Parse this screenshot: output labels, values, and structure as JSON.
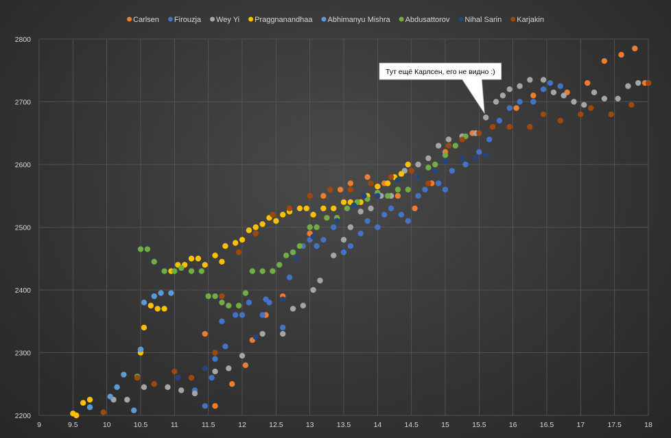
{
  "chart_data": {
    "type": "scatter",
    "xlim": [
      9,
      18
    ],
    "ylim": [
      2200,
      2800
    ],
    "x_ticks": [
      9,
      9.5,
      10,
      10.5,
      11,
      11.5,
      12,
      12.5,
      13,
      13.5,
      14,
      14.5,
      15,
      15.5,
      16,
      16.5,
      17,
      17.5,
      18
    ],
    "y_ticks": [
      2200,
      2300,
      2400,
      2500,
      2600,
      2700,
      2800
    ],
    "grid": true,
    "legend_position": "top",
    "annotation": {
      "text": "Тут ещё Карлсен, его не видно :)",
      "x": 15.6,
      "y": 2675
    },
    "series": [
      {
        "name": "Carlsen",
        "color": "#ed7d31",
        "points": [
          [
            10.5,
            2305
          ],
          [
            11.45,
            2330
          ],
          [
            11.6,
            2215
          ],
          [
            11.85,
            2250
          ],
          [
            12.05,
            2280
          ],
          [
            12.15,
            2320
          ],
          [
            12.35,
            2360
          ],
          [
            12.6,
            2390
          ],
          [
            12.8,
            2450
          ],
          [
            13.0,
            2490
          ],
          [
            13.2,
            2550
          ],
          [
            13.45,
            2560
          ],
          [
            13.6,
            2570
          ],
          [
            13.85,
            2580
          ],
          [
            14.1,
            2570
          ],
          [
            14.3,
            2550
          ],
          [
            14.55,
            2530
          ],
          [
            14.8,
            2570
          ],
          [
            15.0,
            2620
          ],
          [
            15.4,
            2650
          ],
          [
            16.05,
            2690
          ],
          [
            16.3,
            2710
          ],
          [
            16.8,
            2715
          ],
          [
            17.1,
            2730
          ],
          [
            17.35,
            2765
          ],
          [
            17.6,
            2775
          ],
          [
            17.8,
            2785
          ],
          [
            17.95,
            2730
          ]
        ]
      },
      {
        "name": "Firouzja",
        "color": "#4472c4",
        "points": [
          [
            11.3,
            2240
          ],
          [
            11.45,
            2215
          ],
          [
            11.55,
            2260
          ],
          [
            11.6,
            2290
          ],
          [
            11.7,
            2350
          ],
          [
            11.75,
            2310
          ],
          [
            11.9,
            2360
          ],
          [
            12.0,
            2360
          ],
          [
            12.1,
            2380
          ],
          [
            12.3,
            2360
          ],
          [
            12.35,
            2385
          ],
          [
            12.4,
            2380
          ],
          [
            12.6,
            2340
          ],
          [
            12.7,
            2420
          ],
          [
            12.75,
            2460
          ],
          [
            12.9,
            2470
          ],
          [
            13.0,
            2480
          ],
          [
            13.1,
            2470
          ],
          [
            13.2,
            2480
          ],
          [
            13.35,
            2500
          ],
          [
            13.5,
            2460
          ],
          [
            13.6,
            2470
          ],
          [
            13.75,
            2490
          ],
          [
            13.85,
            2510
          ],
          [
            14.0,
            2500
          ],
          [
            14.1,
            2520
          ],
          [
            14.2,
            2530
          ],
          [
            14.35,
            2520
          ],
          [
            14.45,
            2510
          ],
          [
            14.6,
            2550
          ],
          [
            14.7,
            2560
          ],
          [
            14.9,
            2570
          ],
          [
            15.0,
            2560
          ],
          [
            15.1,
            2590
          ],
          [
            15.3,
            2600
          ],
          [
            15.5,
            2620
          ],
          [
            15.65,
            2640
          ],
          [
            15.8,
            2670
          ],
          [
            15.95,
            2690
          ],
          [
            16.1,
            2700
          ],
          [
            16.3,
            2700
          ],
          [
            16.45,
            2720
          ],
          [
            16.55,
            2730
          ],
          [
            16.7,
            2725
          ]
        ]
      },
      {
        "name": "Wey Yi",
        "color": "#a5a5a5",
        "points": [
          [
            10.1,
            2225
          ],
          [
            10.3,
            2225
          ],
          [
            10.55,
            2245
          ],
          [
            10.9,
            2245
          ],
          [
            11.1,
            2240
          ],
          [
            11.3,
            2235
          ],
          [
            11.6,
            2270
          ],
          [
            11.8,
            2275
          ],
          [
            12.0,
            2295
          ],
          [
            12.3,
            2330
          ],
          [
            12.6,
            2330
          ],
          [
            12.75,
            2370
          ],
          [
            12.9,
            2375
          ],
          [
            13.05,
            2400
          ],
          [
            13.15,
            2415
          ],
          [
            13.35,
            2455
          ],
          [
            13.5,
            2480
          ],
          [
            13.6,
            2500
          ],
          [
            13.75,
            2525
          ],
          [
            13.9,
            2530
          ],
          [
            14.05,
            2550
          ],
          [
            14.2,
            2550
          ],
          [
            14.4,
            2590
          ],
          [
            14.6,
            2600
          ],
          [
            14.75,
            2610
          ],
          [
            14.9,
            2630
          ],
          [
            15.05,
            2640
          ],
          [
            15.25,
            2645
          ],
          [
            15.45,
            2650
          ],
          [
            15.6,
            2675
          ],
          [
            15.75,
            2700
          ],
          [
            15.85,
            2710
          ],
          [
            15.95,
            2720
          ],
          [
            16.1,
            2725
          ],
          [
            16.25,
            2735
          ],
          [
            16.45,
            2735
          ],
          [
            16.6,
            2715
          ],
          [
            16.75,
            2710
          ],
          [
            16.9,
            2700
          ],
          [
            17.05,
            2695
          ],
          [
            17.2,
            2715
          ],
          [
            17.35,
            2705
          ],
          [
            17.55,
            2705
          ],
          [
            17.7,
            2725
          ],
          [
            17.85,
            2730
          ],
          [
            18.0,
            2730
          ]
        ]
      },
      {
        "name": "Praggnanandhaa",
        "color": "#ffc000",
        "points": [
          [
            9.5,
            2203
          ],
          [
            9.55,
            2200
          ],
          [
            9.65,
            2220
          ],
          [
            9.75,
            2225
          ],
          [
            10.5,
            2300
          ],
          [
            10.55,
            2340
          ],
          [
            10.65,
            2375
          ],
          [
            10.75,
            2370
          ],
          [
            10.85,
            2370
          ],
          [
            10.95,
            2430
          ],
          [
            11.05,
            2440
          ],
          [
            11.15,
            2440
          ],
          [
            11.25,
            2450
          ],
          [
            11.35,
            2450
          ],
          [
            11.45,
            2440
          ],
          [
            11.6,
            2455
          ],
          [
            11.7,
            2445
          ],
          [
            11.75,
            2470
          ],
          [
            11.9,
            2475
          ],
          [
            12.0,
            2480
          ],
          [
            12.1,
            2495
          ],
          [
            12.2,
            2500
          ],
          [
            12.3,
            2505
          ],
          [
            12.4,
            2515
          ],
          [
            12.5,
            2510
          ],
          [
            12.6,
            2520
          ],
          [
            12.7,
            2525
          ],
          [
            12.85,
            2530
          ],
          [
            12.95,
            2530
          ],
          [
            13.05,
            2520
          ],
          [
            13.2,
            2530
          ],
          [
            13.35,
            2530
          ],
          [
            13.5,
            2540
          ],
          [
            13.6,
            2540
          ],
          [
            13.75,
            2540
          ],
          [
            13.85,
            2550
          ],
          [
            14.0,
            2565
          ],
          [
            14.15,
            2570
          ],
          [
            14.25,
            2580
          ],
          [
            14.35,
            2585
          ],
          [
            14.45,
            2600
          ]
        ]
      },
      {
        "name": "Abhimanyu Mishra",
        "color": "#5b9bd5",
        "points": [
          [
            9.75,
            2213
          ],
          [
            10.05,
            2230
          ],
          [
            10.15,
            2245
          ],
          [
            10.25,
            2265
          ],
          [
            10.4,
            2208
          ],
          [
            10.5,
            2305
          ],
          [
            10.55,
            2380
          ],
          [
            10.7,
            2390
          ],
          [
            10.8,
            2395
          ],
          [
            10.95,
            2395
          ]
        ]
      },
      {
        "name": "Abdusattorov",
        "color": "#70ad47",
        "points": [
          [
            10.45,
            2262
          ],
          [
            10.5,
            2465
          ],
          [
            10.6,
            2465
          ],
          [
            10.7,
            2445
          ],
          [
            10.85,
            2430
          ],
          [
            11.0,
            2430
          ],
          [
            11.1,
            2435
          ],
          [
            11.25,
            2430
          ],
          [
            11.4,
            2430
          ],
          [
            11.5,
            2390
          ],
          [
            11.6,
            2390
          ],
          [
            11.7,
            2380
          ],
          [
            11.8,
            2375
          ],
          [
            11.95,
            2375
          ],
          [
            12.05,
            2395
          ],
          [
            12.15,
            2430
          ],
          [
            12.3,
            2430
          ],
          [
            12.45,
            2430
          ],
          [
            12.55,
            2440
          ],
          [
            12.65,
            2455
          ],
          [
            12.75,
            2460
          ],
          [
            12.85,
            2470
          ],
          [
            13.0,
            2500
          ],
          [
            13.1,
            2500
          ],
          [
            13.25,
            2515
          ],
          [
            13.4,
            2515
          ],
          [
            13.55,
            2530
          ],
          [
            13.7,
            2540
          ],
          [
            13.85,
            2545
          ],
          [
            14.0,
            2555
          ],
          [
            14.15,
            2550
          ],
          [
            14.3,
            2560
          ],
          [
            14.45,
            2560
          ],
          [
            14.6,
            2580
          ],
          [
            14.75,
            2595
          ],
          [
            14.85,
            2600
          ],
          [
            15.0,
            2615
          ],
          [
            15.15,
            2630
          ],
          [
            15.3,
            2645
          ]
        ]
      },
      {
        "name": "Nihal Sarin",
        "color": "#264478",
        "points": [
          [
            11.05,
            2260
          ],
          [
            11.45,
            2275
          ],
          [
            12.2,
            2325
          ],
          [
            12.6,
            2385
          ],
          [
            12.8,
            2450
          ],
          [
            13.05,
            2485
          ],
          [
            13.4,
            2510
          ],
          [
            13.65,
            2535
          ],
          [
            13.8,
            2550
          ],
          [
            14.0,
            2550
          ],
          [
            14.3,
            2575
          ],
          [
            14.6,
            2580
          ],
          [
            14.85,
            2590
          ],
          [
            15.0,
            2605
          ],
          [
            15.25,
            2610
          ],
          [
            15.45,
            2610
          ],
          [
            15.6,
            2615
          ]
        ]
      },
      {
        "name": "Karjakin",
        "color": "#9e480e",
        "points": [
          [
            9.95,
            2205
          ],
          [
            10.45,
            2260
          ],
          [
            10.7,
            2250
          ],
          [
            11.0,
            2270
          ],
          [
            11.25,
            2260
          ],
          [
            11.6,
            2300
          ],
          [
            11.7,
            2390
          ],
          [
            11.95,
            2460
          ],
          [
            12.2,
            2490
          ],
          [
            12.45,
            2520
          ],
          [
            12.7,
            2530
          ],
          [
            13.0,
            2550
          ],
          [
            13.3,
            2560
          ],
          [
            13.6,
            2560
          ],
          [
            13.9,
            2570
          ],
          [
            14.2,
            2580
          ],
          [
            14.5,
            2590
          ],
          [
            14.75,
            2570
          ],
          [
            15.05,
            2630
          ],
          [
            15.25,
            2640
          ],
          [
            15.5,
            2650
          ],
          [
            15.7,
            2660
          ],
          [
            15.95,
            2660
          ],
          [
            16.25,
            2660
          ],
          [
            16.45,
            2680
          ],
          [
            16.7,
            2670
          ],
          [
            17.0,
            2680
          ],
          [
            17.15,
            2690
          ],
          [
            17.45,
            2680
          ],
          [
            17.75,
            2695
          ],
          [
            18.0,
            2730
          ]
        ]
      }
    ]
  }
}
